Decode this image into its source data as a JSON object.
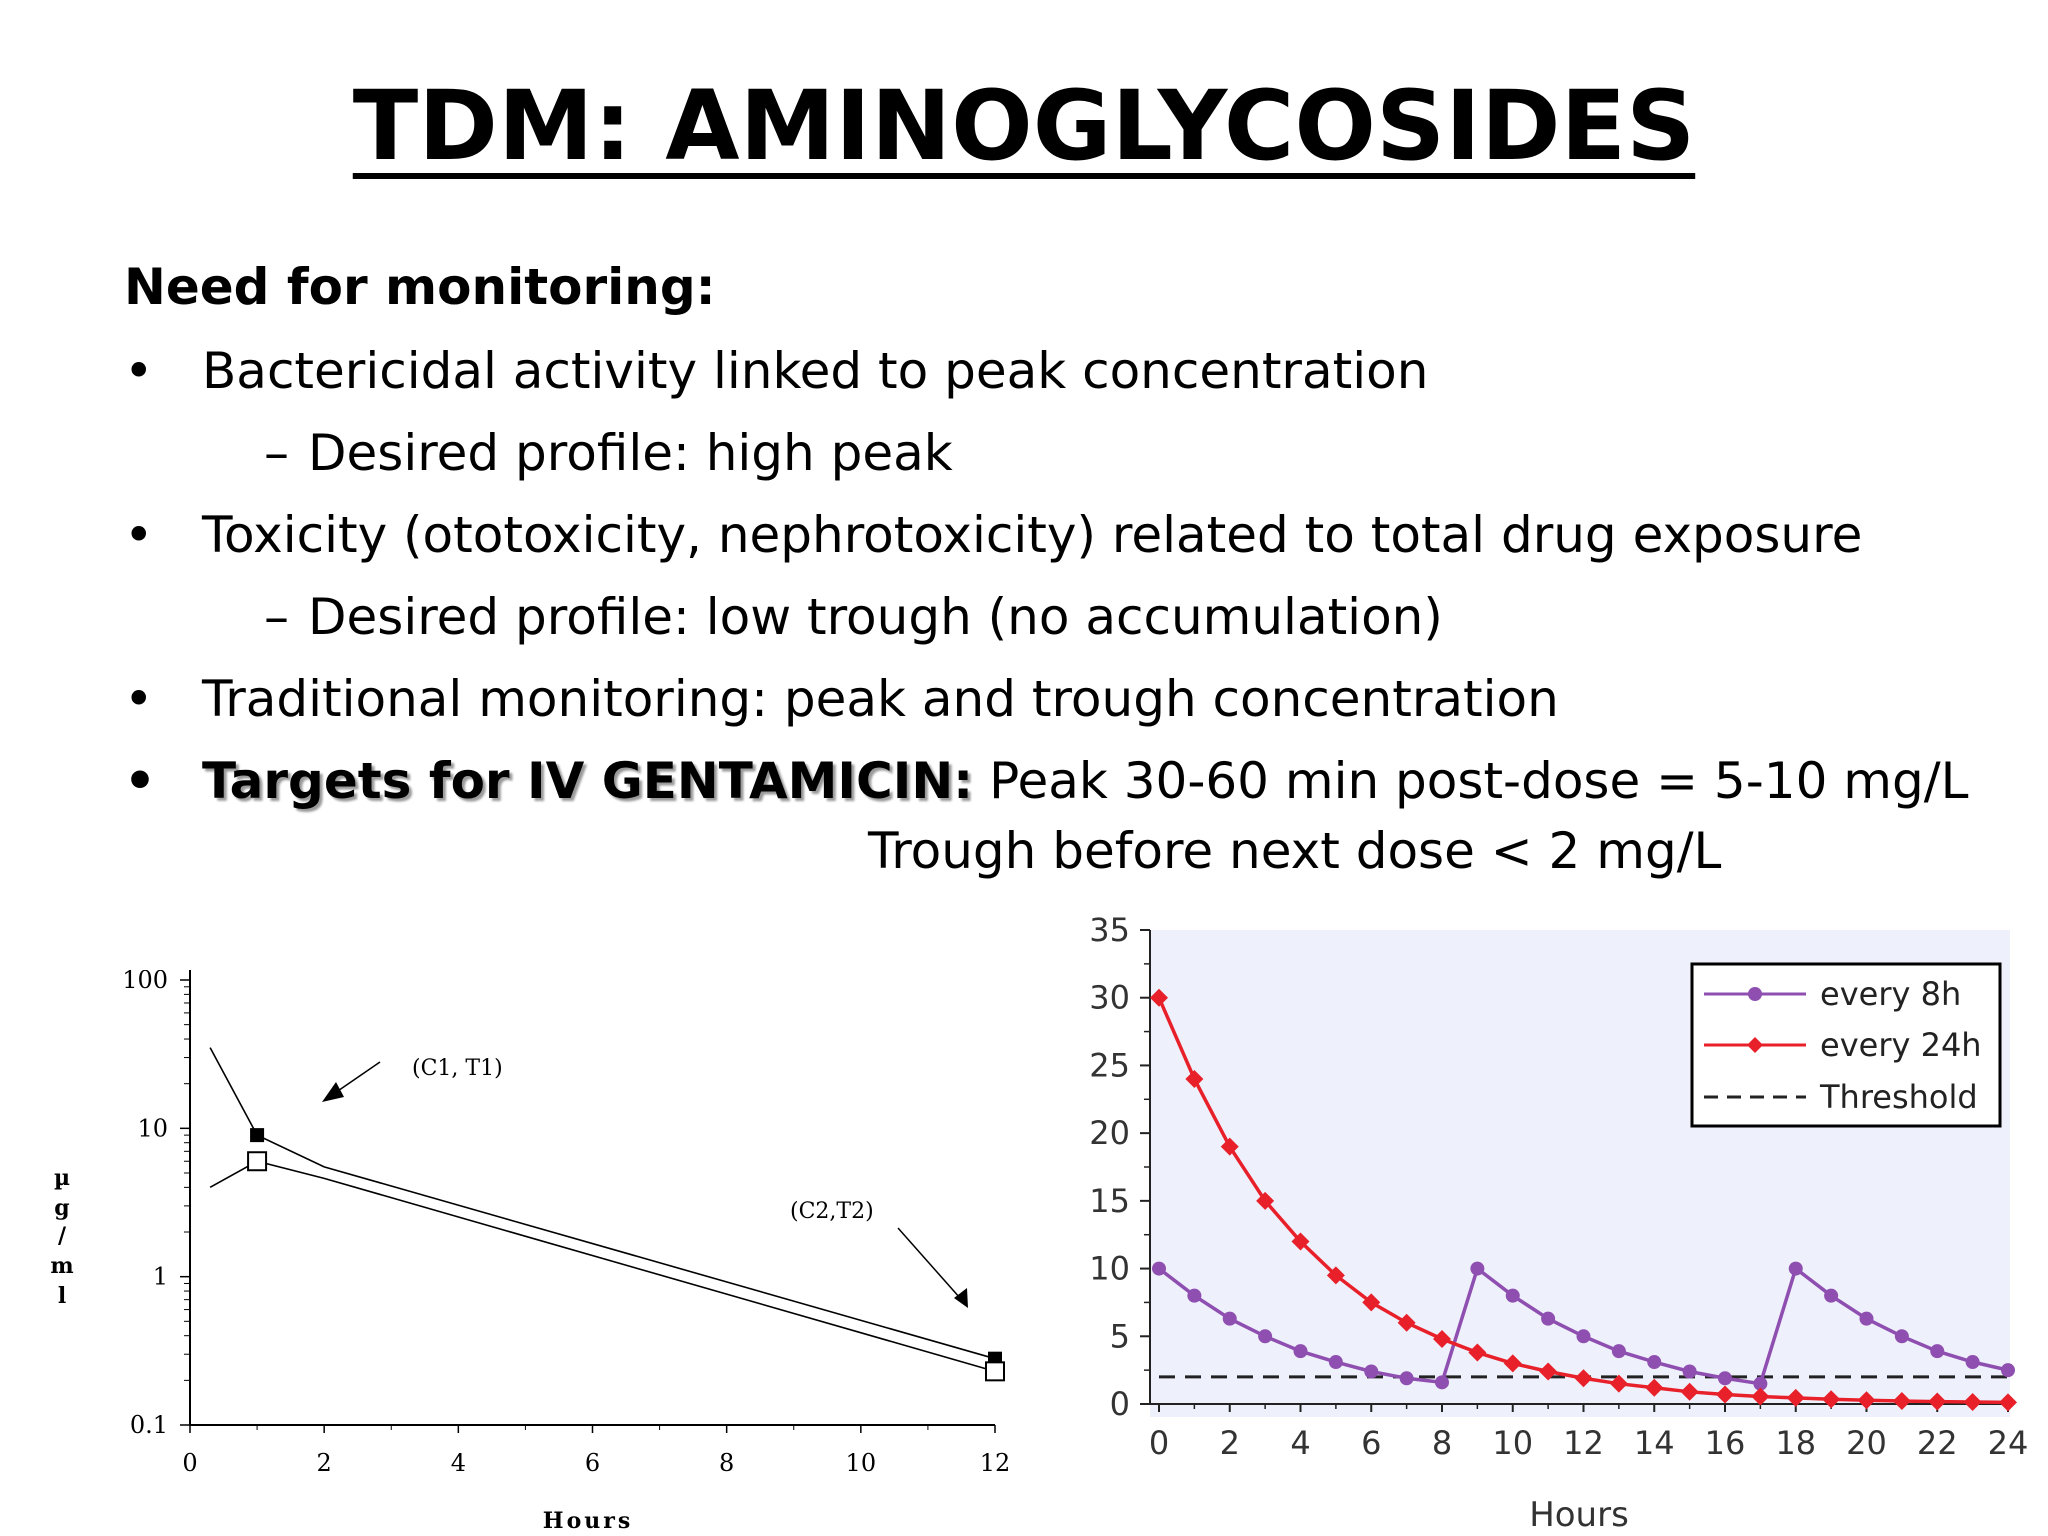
{
  "title": "TDM: AMINOGLYCOSIDES",
  "heading": "Need for monitoring:",
  "bullets": [
    {
      "symbol": "•",
      "text": "Bactericidal activity linked to peak concentration"
    },
    {
      "symbol": "–",
      "text": "Desired profile: high peak"
    },
    {
      "symbol": "•",
      "text": "Toxicity (ototoxicity, nephrotoxicity) related to total drug exposure"
    },
    {
      "symbol": "–",
      "text": "Desired profile: low trough (no accumulation)"
    },
    {
      "symbol": "•",
      "text": "Traditional monitoring: peak and trough concentration"
    },
    {
      "symbol": "•",
      "label": "Targets for IV GENTAMICIN:",
      "text": "Peak 30-60 min post-dose = 5-10 mg/L",
      "continuation": "Trough before next dose < 2 mg/L"
    }
  ],
  "chart_data": [
    {
      "type": "line",
      "scale": "log",
      "xlabel": "Hours",
      "ylabel": "µg/ml",
      "ylabel_chars": [
        "µ",
        "g",
        "/",
        "m",
        "l"
      ],
      "xlim": [
        0,
        12
      ],
      "ylim": [
        0.1,
        100
      ],
      "xticks": [
        "0",
        "2",
        "4",
        "6",
        "8",
        "10",
        "12"
      ],
      "yticks": [
        "0.1",
        "1",
        "10",
        "100"
      ],
      "grid": false,
      "series": [
        {
          "x": [
            0.3,
            1,
            2,
            12
          ],
          "y": [
            35,
            9,
            5.5,
            0.28
          ]
        },
        {
          "x": [
            0.3,
            1,
            2,
            12
          ],
          "y": [
            4,
            6,
            4.6,
            0.23
          ]
        }
      ],
      "markers": [
        {
          "x": 1,
          "y": 9,
          "fill": "filled"
        },
        {
          "x": 1,
          "y": 6,
          "fill": "open"
        },
        {
          "x": 12,
          "y": 0.28,
          "fill": "filled"
        },
        {
          "x": 12,
          "y": 0.23,
          "fill": "open"
        }
      ],
      "annotations": [
        "(C1, T1)",
        "(C2,T2)"
      ]
    },
    {
      "type": "line",
      "xlabel": "Hours",
      "ylabel": "",
      "xlim": [
        0,
        24
      ],
      "ylim": [
        0,
        35
      ],
      "xticks": [
        "0",
        "2",
        "4",
        "6",
        "8",
        "10",
        "12",
        "14",
        "16",
        "18",
        "20",
        "22",
        "24"
      ],
      "yticks": [
        "0",
        "5",
        "10",
        "15",
        "20",
        "25",
        "30",
        "35"
      ],
      "grid": false,
      "background": "#eef0fb",
      "legend_position": "top-right",
      "series": [
        {
          "name": "every 8h",
          "color": "#8e4fb0",
          "marker": "circle",
          "x": [
            0,
            1,
            2,
            3,
            4,
            5,
            6,
            7,
            8,
            9,
            10,
            11,
            12,
            13,
            14,
            15,
            16,
            17,
            18,
            19,
            20,
            21,
            22,
            23,
            24
          ],
          "y": [
            10,
            8,
            6.3,
            5,
            3.9,
            3.1,
            2.4,
            1.9,
            1.6,
            10,
            8,
            6.3,
            5,
            3.9,
            3.1,
            2.4,
            1.9,
            1.5,
            10,
            8,
            6.3,
            5,
            3.9,
            3.1,
            2.5
          ]
        },
        {
          "name": "every 24h",
          "color": "#e8202a",
          "marker": "diamond",
          "x": [
            0,
            1,
            2,
            3,
            4,
            5,
            6,
            7,
            8,
            9,
            10,
            11,
            12,
            13,
            14,
            15,
            16,
            17,
            18,
            19,
            20,
            21,
            22,
            23,
            24
          ],
          "y": [
            30,
            24,
            19,
            15,
            12,
            9.5,
            7.5,
            6,
            4.8,
            3.8,
            3,
            2.4,
            1.9,
            1.5,
            1.2,
            0.9,
            0.7,
            0.55,
            0.45,
            0.35,
            0.28,
            0.22,
            0.18,
            0.15,
            0.12
          ]
        },
        {
          "name": "Threshold",
          "color": "#222222",
          "dash": true,
          "x": [
            0,
            24
          ],
          "y": [
            2,
            2
          ]
        }
      ]
    }
  ]
}
